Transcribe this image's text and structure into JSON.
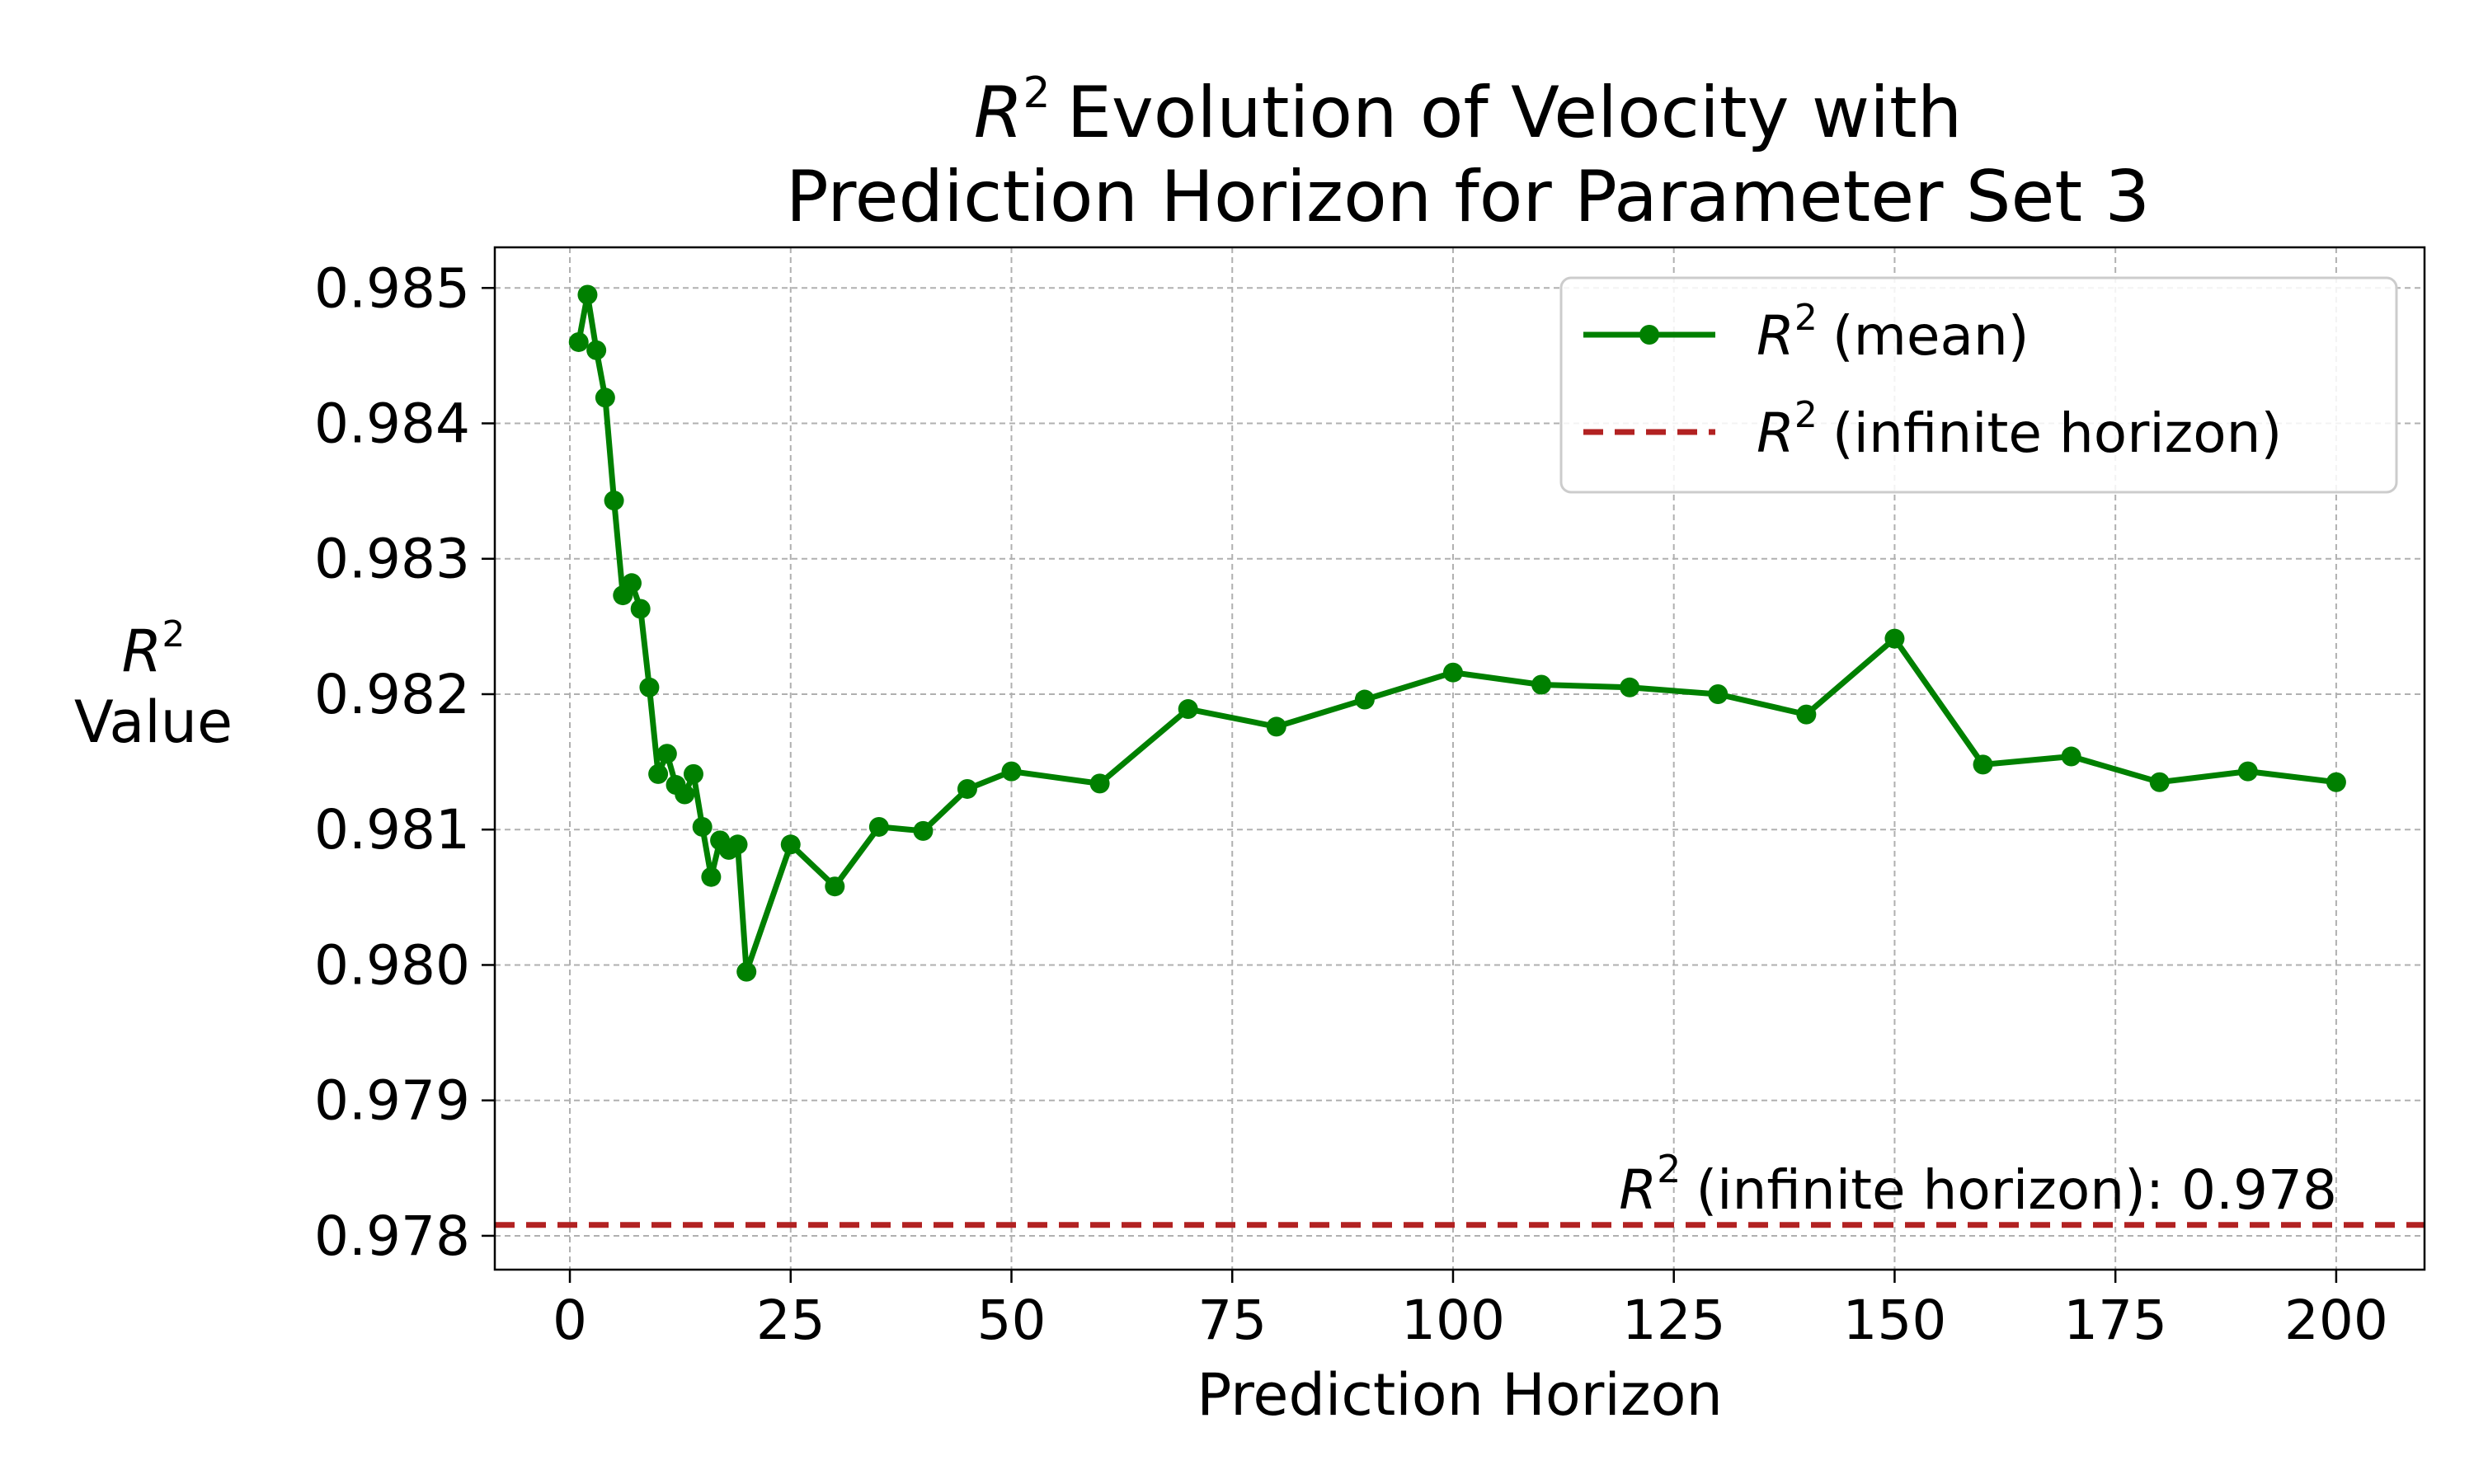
{
  "chart_data": {
    "type": "line",
    "title_line1_suffix": "Evolution of Velocity with",
    "title_line2": "Prediction Horizon for Parameter Set 3",
    "r_symbol": "R",
    "sup": "2",
    "xlabel": "Prediction Horizon",
    "ylabel_line2": "Value",
    "xlim": [
      -8.5,
      210
    ],
    "ylim": [
      0.97775,
      0.9853
    ],
    "xticks": [
      0,
      25,
      50,
      75,
      100,
      125,
      150,
      175,
      200
    ],
    "yticks": [
      0.978,
      0.979,
      0.98,
      0.981,
      0.982,
      0.983,
      0.984,
      0.985
    ],
    "ytick_labels": [
      "0.978",
      "0.979",
      "0.980",
      "0.981",
      "0.982",
      "0.983",
      "0.984",
      "0.985"
    ],
    "grid": true,
    "legend_position": "top-right",
    "series": [
      {
        "name": "(mean)",
        "color": "#008000",
        "marker": "circle",
        "x": [
          1,
          2,
          3,
          4,
          5,
          6,
          7,
          8,
          9,
          10,
          11,
          12,
          13,
          14,
          15,
          16,
          17,
          18,
          19,
          20,
          25,
          30,
          35,
          40,
          45,
          50,
          60,
          70,
          80,
          90,
          100,
          110,
          120,
          130,
          140,
          150,
          160,
          170,
          180,
          190,
          200
        ],
        "y": [
          0.9846,
          0.98495,
          0.98454,
          0.98419,
          0.98343,
          0.98273,
          0.98282,
          0.98263,
          0.98205,
          0.98141,
          0.98156,
          0.98133,
          0.98126,
          0.98141,
          0.98102,
          0.98065,
          0.98092,
          0.98085,
          0.98089,
          0.97995,
          0.98089,
          0.98058,
          0.98102,
          0.98099,
          0.9813,
          0.98143,
          0.98134,
          0.98189,
          0.98176,
          0.98196,
          0.98216,
          0.98207,
          0.98205,
          0.982,
          0.98185,
          0.98241,
          0.98148,
          0.98154,
          0.98135,
          0.98143,
          0.98135
        ]
      }
    ],
    "reference_line": {
      "name": "(infinite horizon)",
      "y": 0.97808,
      "color": "#b22222",
      "style": "dashed",
      "annotation_suffix": "(infinite horizon): 0.978"
    }
  }
}
